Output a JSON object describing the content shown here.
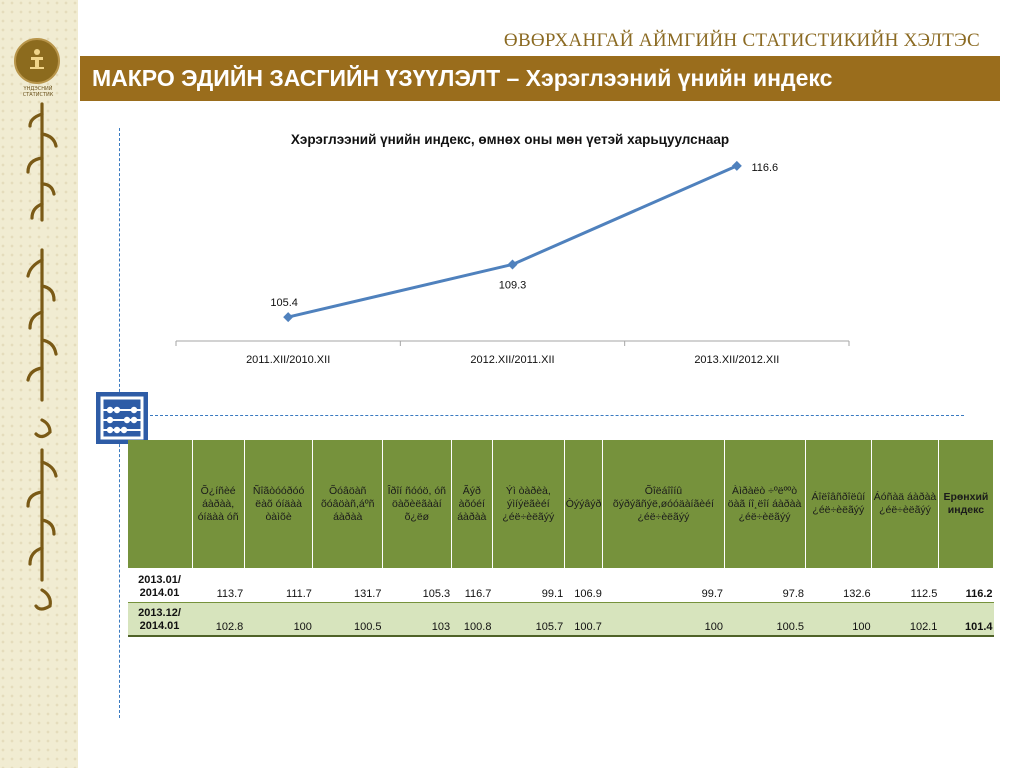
{
  "header": {
    "org_title": "ӨВӨРХАНГАЙ АЙМГИЙН СТАТИСТИКИЙН ХЭЛТЭС",
    "banner": "МАКРО ЭДИЙН ЗАСГИЙН ҮЗҮҮЛЭЛТ – Хэрэглээний үнийн индекс",
    "logo_caption": "ҮНДЭСНИЙ СТАТИСТИК"
  },
  "icons": [
    "logo-emblem-icon",
    "mongolian-script-decoration",
    "abacus-icon"
  ],
  "colors": {
    "banner": "#9a6d1c",
    "line": "#4f81bd",
    "table_header": "#76923c",
    "table_row_alt": "#d7e4bd",
    "guides": "#3a7ac0"
  },
  "chart_data": {
    "type": "line",
    "title": "Хэрэглээний үнийн индекс, өмнөх оны мөн үетэй харьцуулснаар",
    "categories": [
      "2011.XII/2010.XII",
      "2012.XII/2011.XII",
      "2013.XII/2012.XII"
    ],
    "values": [
      105.4,
      109.3,
      116.6
    ],
    "xlabel": "",
    "ylabel": "",
    "grid": false,
    "data_labels": true
  },
  "table": {
    "columns": [
      "",
      "Õ¿íñèé áàðàà, óíäàà óñ",
      "Ñîãòóóðóó ëàõ óíäàà òàìõè",
      "Õóâöàñ õóâöàñ,áºñ áàðàà",
      "Îðîí ñóóö, óñ öàõèëãààí õ¿ëø",
      "Ãýð àõóéí áàðàà",
      "Ýì òàðèà, ýìíýëãèéí ¿éë÷èëãýý",
      "Òýýâýð",
      "Õîëáîîíû õýðýãñýë,øóóäàíãèéí ¿éë÷èëãýý",
      "Àìðàëò ÷ºëººò öàã íî¸ëîí áàðàà ¿éë÷èëãýý",
      "Áîëîâñðîëûí ¿éë÷èëãýý",
      "Áóñàä áàðàà ¿éë÷èëãýý",
      "Ерөнхий индекс"
    ],
    "rows": [
      {
        "label": "2013.01/ 2014.01",
        "values": [
          "113.7",
          "111.7",
          "131.7",
          "105.3",
          "116.7",
          "99.1",
          "106.9",
          "99.7",
          "97.8",
          "132.6",
          "112.5",
          "116.2"
        ]
      },
      {
        "label": "2013.12/ 2014.01",
        "values": [
          "102.8",
          "100",
          "100.5",
          "103",
          "100.8",
          "105.7",
          "100.7",
          "100",
          "100.5",
          "100",
          "102.1",
          "101.4"
        ]
      }
    ]
  }
}
